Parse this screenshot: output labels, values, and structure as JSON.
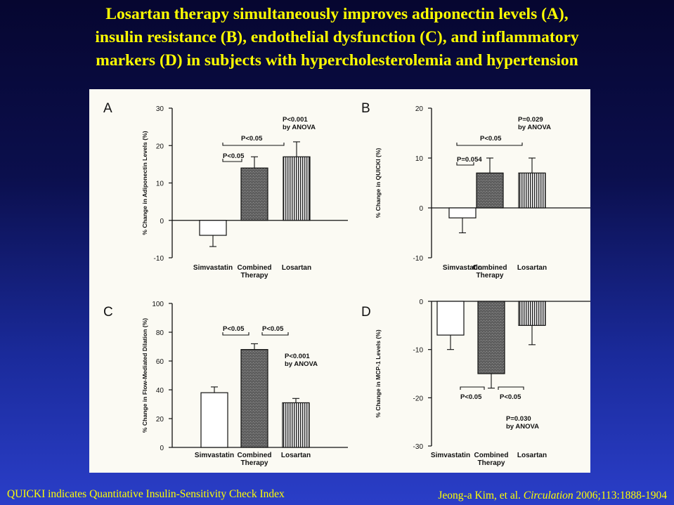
{
  "slide": {
    "title_lines": [
      "Losartan therapy simultaneously improves adiponectin levels (A),",
      "insulin resistance (B), endothelial dysfunction (C), and inflammatory",
      "markers (D) in subjects with hypercholesterolemia and hypertension"
    ],
    "footnote_left": "QUICKI indicates Quantitative Insulin-Sensitivity Check Index",
    "citation": {
      "authors": "Jeong-a Kim, et al.",
      "journal": "Circulation",
      "ref": "2006;113:1888-1904"
    }
  },
  "colors": {
    "title_text": "#ffff00",
    "figure_background": "#fbfaf3",
    "simvastatin_fill": "#ffffff",
    "combined_fill": "#666666",
    "losartan_fill": "vertical-stripes"
  },
  "chart_data": [
    {
      "panel": "A",
      "type": "bar",
      "ylabel": "% Change in Adiponectin Levels (%)",
      "categories": [
        "Simvastatin",
        "Combined|Therapy",
        "Losartan"
      ],
      "values": [
        -4,
        14,
        17
      ],
      "errors": [
        3,
        3,
        4
      ],
      "ylim": [
        -10,
        30
      ],
      "yticks": [
        -10,
        0,
        10,
        20,
        30
      ],
      "annotations": [
        "P<0.05",
        "P<0.05",
        "P<0.001|by ANOVA"
      ]
    },
    {
      "panel": "B",
      "type": "bar",
      "ylabel": "% Change in QUICKI (%)",
      "categories": [
        "Simvastatin",
        "Combined|Therapy",
        "Losartan"
      ],
      "values": [
        -2,
        7,
        7
      ],
      "errors": [
        3,
        3,
        3
      ],
      "ylim": [
        -10,
        20
      ],
      "yticks": [
        -10,
        0,
        10,
        20
      ],
      "annotations": [
        "P=0.054",
        "P<0.05",
        "P=0.029|by ANOVA"
      ]
    },
    {
      "panel": "C",
      "type": "bar",
      "ylabel": "% Change in Flow-Mediated Dilation (%)",
      "categories": [
        "Simvastatin",
        "Combined|Therapy",
        "Losartan"
      ],
      "values": [
        38,
        68,
        31
      ],
      "errors": [
        4,
        4,
        3
      ],
      "ylim": [
        0,
        100
      ],
      "yticks": [
        0,
        20,
        40,
        60,
        80,
        100
      ],
      "annotations": [
        "P<0.05",
        "P<0.05",
        "P<0.001|by ANOVA"
      ]
    },
    {
      "panel": "D",
      "type": "bar",
      "ylabel": "% Change in MCP-1 Levels (%)",
      "categories": [
        "Simvastatin",
        "Combined|Therapy",
        "Losartan"
      ],
      "values": [
        -7,
        -15,
        -5
      ],
      "errors": [
        3,
        3,
        4
      ],
      "ylim": [
        -30,
        0
      ],
      "yticks": [
        -30,
        -20,
        -10,
        0
      ],
      "annotations": [
        "P<0.05",
        "P<0.05",
        "P=0.030|by ANOVA"
      ]
    }
  ]
}
